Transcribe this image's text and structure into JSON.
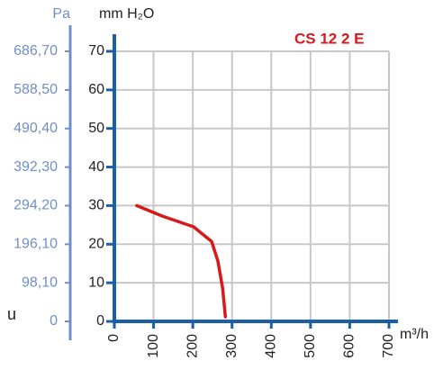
{
  "chart_data": {
    "type": "line",
    "title": "CS 12 2 E",
    "y_label": "mm H₂O",
    "y2_label": "Pa",
    "x_label": "m³/h",
    "corner_label": "u",
    "x": [
      57,
      122,
      202,
      248,
      264,
      276,
      283
    ],
    "series": [
      {
        "color": "#d7191c",
        "values": [
          30,
          27.3,
          24.5,
          20.7,
          15.6,
          8.6,
          1.2
        ]
      }
    ],
    "xlim": [
      0,
      700
    ],
    "xticks": [
      0,
      100,
      200,
      300,
      400,
      500,
      600,
      700
    ],
    "ylim": [
      0,
      70
    ],
    "yticks": [
      0,
      10,
      20,
      30,
      40,
      50,
      60,
      70
    ],
    "y2lim": [
      0,
      686.7
    ],
    "y2ticks": [
      0,
      {
        "value": 98.1,
        "label": "98,10"
      },
      {
        "value": 196.1,
        "label": "196,10"
      },
      {
        "value": 294.2,
        "label": "294,20"
      },
      {
        "value": 392.3,
        "label": "392,30"
      },
      {
        "value": 490.4,
        "label": "490,40"
      },
      {
        "value": 588.5,
        "label": "588,50"
      },
      {
        "value": 686.7,
        "label": "686,70"
      }
    ],
    "grid": true
  }
}
